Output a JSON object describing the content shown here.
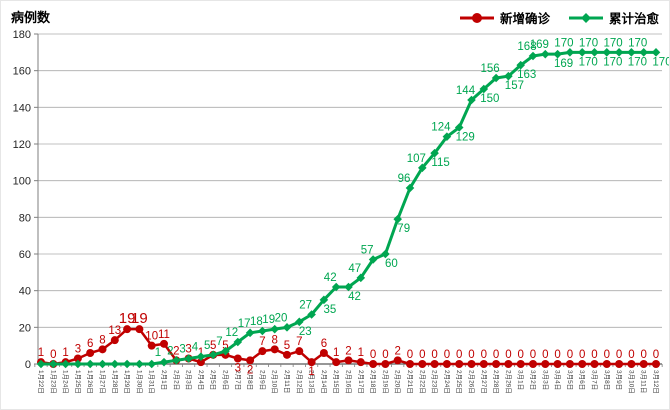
{
  "title": "病例数",
  "legend": {
    "items": [
      {
        "label": "新增确诊",
        "color": "#C00000",
        "marker": "circle"
      },
      {
        "label": "累计治愈",
        "color": "#00A651",
        "marker": "diamond"
      }
    ]
  },
  "chart_data": {
    "type": "line",
    "title": "病例数",
    "xlabel": "",
    "ylabel": "病例数",
    "ylim": [
      0,
      180
    ],
    "ytick": 20,
    "grid": true,
    "legend_position": "top-right",
    "x": [
      "1月22日",
      "1月23日",
      "1月24日",
      "1月25日",
      "1月26日",
      "1月27日",
      "1月28日",
      "1月29日",
      "1月30日",
      "1月31日",
      "2月1日",
      "2月2日",
      "2月3日",
      "2月4日",
      "2月5日",
      "2月6日",
      "2月7日",
      "2月8日",
      "2月9日",
      "2月10日",
      "2月11日",
      "2月12日",
      "2月13日",
      "2月14日",
      "2月15日",
      "2月16日",
      "2月17日",
      "2月18日",
      "2月19日",
      "2月20日",
      "2月21日",
      "2月22日",
      "2月23日",
      "2月24日",
      "2月25日",
      "2月26日",
      "2月27日",
      "2月28日",
      "2月29日",
      "3月1日",
      "3月2日",
      "3月3日",
      "3月4日",
      "3月5日",
      "3月6日",
      "3月7日",
      "3月8日",
      "3月9日",
      "3月10日",
      "3月11日",
      "3月12日"
    ],
    "series": [
      {
        "name": "新增确诊",
        "color": "#C00000",
        "marker": "circle",
        "values": [
          1,
          0,
          1,
          3,
          6,
          8,
          13,
          19,
          19,
          10,
          11,
          2,
          3,
          1,
          5,
          5,
          3,
          2,
          7,
          8,
          5,
          7,
          1,
          6,
          1,
          2,
          1,
          0,
          0,
          2,
          0,
          0,
          0,
          0,
          0,
          0,
          0,
          0,
          0,
          0,
          0,
          0,
          0,
          0,
          0,
          0,
          0,
          0,
          0,
          0,
          0
        ],
        "label_below": [
          16,
          17,
          22
        ],
        "big_labels": [
          7,
          8
        ],
        "hide_zero_labels": false,
        "label_dx": false
      },
      {
        "name": "累计治愈",
        "color": "#00A651",
        "marker": "diamond",
        "values": [
          0,
          0,
          0,
          0,
          0,
          0,
          0,
          0,
          0,
          0,
          1,
          2,
          3,
          4,
          5,
          7,
          12,
          17,
          18,
          19,
          20,
          23,
          27,
          35,
          42,
          42,
          47,
          57,
          60,
          79,
          96,
          107,
          115,
          124,
          129,
          144,
          150,
          156,
          157,
          163,
          168,
          169,
          169,
          170,
          170,
          170,
          170,
          170,
          170,
          170,
          170
        ],
        "label_below": [
          21,
          23,
          25,
          28,
          29,
          32,
          34,
          36,
          38,
          39,
          42,
          44,
          46,
          48,
          50
        ],
        "big_labels": [],
        "hide_zero_labels": true,
        "label_dx": true
      }
    ],
    "axis_color": "#7f7f7f",
    "grid_color": "#ababab",
    "tick_label_color": "#262626"
  }
}
